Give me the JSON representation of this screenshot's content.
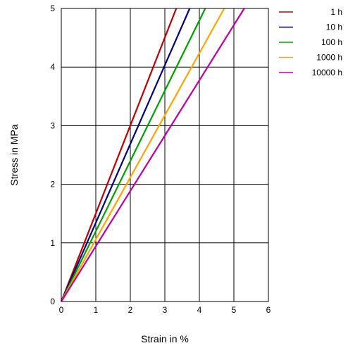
{
  "chart_data": {
    "type": "line",
    "title": "",
    "xlabel": "Strain in %",
    "ylabel": "Stress in MPa",
    "xlim": [
      0,
      6
    ],
    "ylim": [
      0,
      5
    ],
    "xticks": [
      "0",
      "1",
      "2",
      "3",
      "4",
      "5",
      "6"
    ],
    "yticks": [
      "0",
      "1",
      "2",
      "3",
      "4",
      "5"
    ],
    "grid": true,
    "legend_position": "top-right",
    "series": [
      {
        "name": "1 h",
        "color": "#c00000",
        "x": [
          0,
          3.33
        ],
        "y": [
          0,
          5
        ]
      },
      {
        "name": "10 h",
        "color": "#000080",
        "x": [
          0,
          3.72
        ],
        "y": [
          0,
          5
        ]
      },
      {
        "name": "100 h",
        "color": "#00a000",
        "x": [
          0,
          4.17
        ],
        "y": [
          0,
          5
        ]
      },
      {
        "name": "1000 h",
        "color": "#ffa500",
        "x": [
          0,
          4.72
        ],
        "y": [
          0,
          5
        ]
      },
      {
        "name": "10000 h",
        "color": "#c000a0",
        "x": [
          0,
          5.3
        ],
        "y": [
          0,
          5
        ]
      }
    ]
  }
}
